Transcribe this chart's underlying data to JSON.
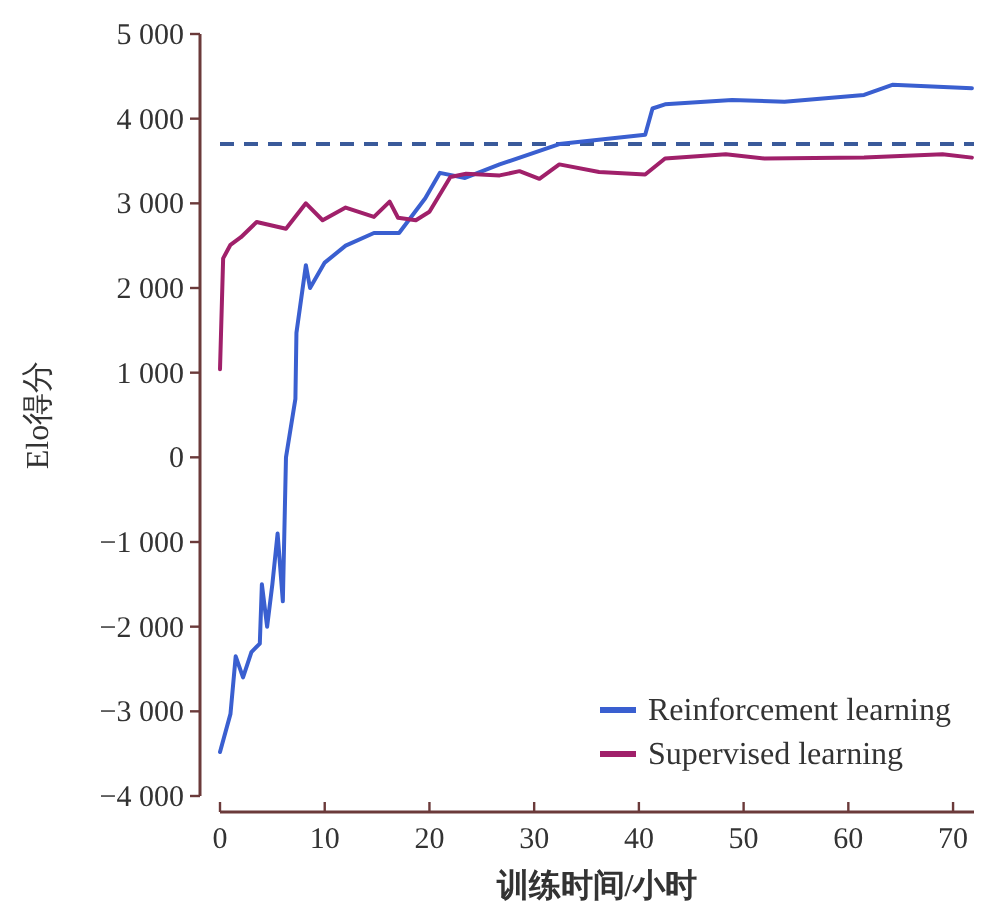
{
  "chart_data": {
    "type": "line",
    "xlabel": "训练时间/小时",
    "ylabel": "Elo得分",
    "xlim": [
      0,
      72
    ],
    "ylim": [
      -4000,
      5000
    ],
    "xticks": [
      0,
      10,
      20,
      30,
      40,
      50,
      60,
      70
    ],
    "yticks": [
      {
        "value": -4000,
        "label": "−4 000"
      },
      {
        "value": -3000,
        "label": "−3 000"
      },
      {
        "value": -2000,
        "label": "−2 000"
      },
      {
        "value": -1000,
        "label": "−1 000"
      },
      0,
      {
        "value": 1000,
        "label": "1 000"
      },
      {
        "value": 2000,
        "label": "2 000"
      },
      {
        "value": 3000,
        "label": "3 000"
      },
      {
        "value": 4000,
        "label": "4 000"
      },
      {
        "value": 5000,
        "label": "5 000"
      }
    ],
    "grid": false,
    "legend": "bottom right",
    "series": [
      {
        "name": "Reinforcement learning",
        "color": "#3a5fd0",
        "x": [
          0,
          1,
          1.5,
          2.2,
          3,
          3.8,
          4,
          4.5,
          5,
          5.5,
          6,
          6.3,
          7.2,
          7.3,
          8.2,
          8.6,
          10,
          12,
          14.7,
          17.1,
          19.6,
          21,
          23.4,
          26.7,
          32.4,
          40.6,
          41.3,
          42.5,
          48.9,
          53.9,
          61.5,
          64.2,
          71.8
        ],
        "values": [
          -3480,
          -3030,
          -2350,
          -2600,
          -2300,
          -2200,
          -1500,
          -2000,
          -1500,
          -900,
          -1700,
          0,
          690,
          1470,
          2270,
          2000,
          2300,
          2500,
          2650,
          2650,
          3060,
          3360,
          3300,
          3460,
          3700,
          3810,
          4120,
          4170,
          4220,
          4200,
          4280,
          4400,
          4360
        ]
      },
      {
        "name": "Supervised learning",
        "color": "#a0206a",
        "x": [
          0,
          0.3,
          1,
          2,
          3.5,
          6.3,
          8.2,
          9.8,
          12,
          14.7,
          16.2,
          17,
          18.7,
          20,
          22,
          23.5,
          26.7,
          28.6,
          30.5,
          32.4,
          36.2,
          40.6,
          42.5,
          48.3,
          52,
          61.5,
          69,
          71.8
        ],
        "values": [
          1040,
          2350,
          2510,
          2600,
          2780,
          2700,
          3000,
          2800,
          2950,
          2840,
          3020,
          2830,
          2800,
          2900,
          3310,
          3350,
          3330,
          3380,
          3290,
          3460,
          3370,
          3340,
          3530,
          3580,
          3530,
          3540,
          3580,
          3540
        ]
      }
    ],
    "ref_lines": [
      {
        "axis": "y",
        "value": 3700,
        "color": "#3a5a9a",
        "line_style": "dashed"
      }
    ]
  }
}
